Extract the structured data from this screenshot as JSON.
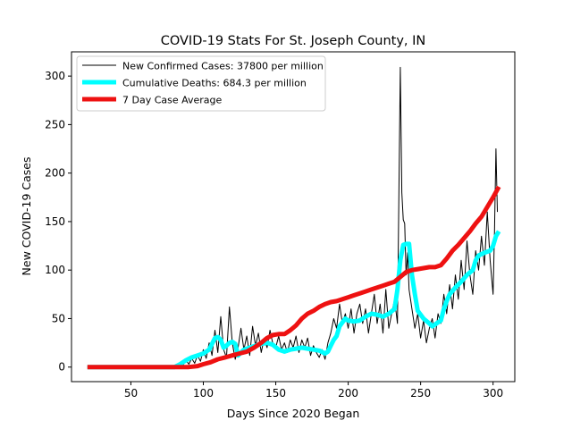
{
  "chart_data": {
    "type": "line",
    "title": "COVID-19 Stats For St. Joseph County, IN",
    "xlabel": "Days Since 2020 Began",
    "ylabel": "New COVID-19 Cases",
    "xlim": [
      9,
      315
    ],
    "ylim": [
      -15,
      325
    ],
    "xticks": [
      50,
      100,
      150,
      200,
      250,
      300
    ],
    "yticks": [
      0,
      50,
      100,
      150,
      200,
      250,
      300
    ],
    "grid": false,
    "legend_position": "top-left",
    "series": [
      {
        "name": "New Confirmed Cases: 37800 per million",
        "color": "#000000",
        "line_width": 1,
        "points": [
          [
            20,
            0
          ],
          [
            40,
            0
          ],
          [
            60,
            0
          ],
          [
            75,
            0
          ],
          [
            80,
            1
          ],
          [
            84,
            5
          ],
          [
            86,
            2
          ],
          [
            88,
            7
          ],
          [
            90,
            3
          ],
          [
            92,
            9
          ],
          [
            94,
            4
          ],
          [
            96,
            12
          ],
          [
            98,
            6
          ],
          [
            100,
            18
          ],
          [
            102,
            9
          ],
          [
            104,
            25
          ],
          [
            106,
            12
          ],
          [
            108,
            38
          ],
          [
            110,
            15
          ],
          [
            112,
            52
          ],
          [
            114,
            18
          ],
          [
            116,
            10
          ],
          [
            118,
            62
          ],
          [
            120,
            25
          ],
          [
            122,
            8
          ],
          [
            124,
            20
          ],
          [
            126,
            40
          ],
          [
            128,
            18
          ],
          [
            130,
            32
          ],
          [
            132,
            12
          ],
          [
            134,
            42
          ],
          [
            136,
            22
          ],
          [
            138,
            35
          ],
          [
            140,
            15
          ],
          [
            142,
            30
          ],
          [
            144,
            20
          ],
          [
            146,
            38
          ],
          [
            148,
            24
          ],
          [
            150,
            20
          ],
          [
            152,
            32
          ],
          [
            154,
            18
          ],
          [
            156,
            25
          ],
          [
            158,
            15
          ],
          [
            160,
            28
          ],
          [
            162,
            20
          ],
          [
            164,
            32
          ],
          [
            166,
            15
          ],
          [
            168,
            28
          ],
          [
            170,
            20
          ],
          [
            172,
            30
          ],
          [
            174,
            12
          ],
          [
            176,
            22
          ],
          [
            178,
            15
          ],
          [
            180,
            10
          ],
          [
            182,
            18
          ],
          [
            184,
            8
          ],
          [
            186,
            25
          ],
          [
            188,
            35
          ],
          [
            190,
            50
          ],
          [
            192,
            40
          ],
          [
            194,
            65
          ],
          [
            196,
            45
          ],
          [
            198,
            55
          ],
          [
            200,
            40
          ],
          [
            202,
            60
          ],
          [
            204,
            35
          ],
          [
            206,
            55
          ],
          [
            208,
            65
          ],
          [
            210,
            45
          ],
          [
            212,
            60
          ],
          [
            214,
            35
          ],
          [
            216,
            55
          ],
          [
            218,
            75
          ],
          [
            220,
            45
          ],
          [
            222,
            65
          ],
          [
            224,
            35
          ],
          [
            226,
            80
          ],
          [
            228,
            40
          ],
          [
            230,
            55
          ],
          [
            232,
            70
          ],
          [
            234,
            45
          ],
          [
            236,
            309
          ],
          [
            237,
            180
          ],
          [
            238,
            152
          ],
          [
            239,
            148
          ],
          [
            240,
            95
          ],
          [
            241,
            118
          ],
          [
            242,
            80
          ],
          [
            244,
            60
          ],
          [
            246,
            40
          ],
          [
            248,
            55
          ],
          [
            250,
            30
          ],
          [
            252,
            48
          ],
          [
            254,
            25
          ],
          [
            256,
            40
          ],
          [
            258,
            50
          ],
          [
            260,
            30
          ],
          [
            262,
            55
          ],
          [
            264,
            45
          ],
          [
            266,
            75
          ],
          [
            268,
            55
          ],
          [
            270,
            85
          ],
          [
            272,
            60
          ],
          [
            274,
            95
          ],
          [
            276,
            70
          ],
          [
            278,
            110
          ],
          [
            280,
            80
          ],
          [
            282,
            130
          ],
          [
            284,
            95
          ],
          [
            286,
            75
          ],
          [
            288,
            120
          ],
          [
            290,
            100
          ],
          [
            292,
            135
          ],
          [
            294,
            105
          ],
          [
            296,
            160
          ],
          [
            298,
            110
          ],
          [
            300,
            75
          ],
          [
            301,
            140
          ],
          [
            302,
            225
          ],
          [
            303,
            160
          ]
        ]
      },
      {
        "name": "Cumulative Deaths: 684.3 per million",
        "color": "#00ffff",
        "line_width": 5,
        "points": [
          [
            20,
            0
          ],
          [
            40,
            0
          ],
          [
            60,
            0
          ],
          [
            80,
            0
          ],
          [
            84,
            3
          ],
          [
            88,
            7
          ],
          [
            92,
            10
          ],
          [
            96,
            12
          ],
          [
            100,
            14
          ],
          [
            104,
            18
          ],
          [
            108,
            30
          ],
          [
            110,
            31
          ],
          [
            112,
            28
          ],
          [
            114,
            20
          ],
          [
            116,
            22
          ],
          [
            118,
            25
          ],
          [
            120,
            26
          ],
          [
            122,
            24
          ],
          [
            124,
            12
          ],
          [
            126,
            15
          ],
          [
            128,
            18
          ],
          [
            132,
            20
          ],
          [
            136,
            22
          ],
          [
            140,
            24
          ],
          [
            144,
            25
          ],
          [
            148,
            23
          ],
          [
            152,
            18
          ],
          [
            156,
            16
          ],
          [
            160,
            18
          ],
          [
            164,
            19
          ],
          [
            168,
            20
          ],
          [
            172,
            19
          ],
          [
            176,
            18
          ],
          [
            180,
            17
          ],
          [
            184,
            14
          ],
          [
            186,
            16
          ],
          [
            188,
            22
          ],
          [
            190,
            28
          ],
          [
            192,
            32
          ],
          [
            194,
            42
          ],
          [
            196,
            46
          ],
          [
            198,
            50
          ],
          [
            200,
            48
          ],
          [
            204,
            47
          ],
          [
            208,
            48
          ],
          [
            212,
            52
          ],
          [
            216,
            55
          ],
          [
            220,
            54
          ],
          [
            224,
            52
          ],
          [
            228,
            55
          ],
          [
            232,
            60
          ],
          [
            234,
            80
          ],
          [
            236,
            110
          ],
          [
            238,
            126
          ],
          [
            240,
            127
          ],
          [
            242,
            127
          ],
          [
            244,
            95
          ],
          [
            246,
            75
          ],
          [
            248,
            58
          ],
          [
            252,
            50
          ],
          [
            256,
            45
          ],
          [
            258,
            42
          ],
          [
            260,
            44
          ],
          [
            264,
            48
          ],
          [
            266,
            60
          ],
          [
            268,
            68
          ],
          [
            270,
            75
          ],
          [
            274,
            82
          ],
          [
            278,
            88
          ],
          [
            282,
            95
          ],
          [
            286,
            100
          ],
          [
            288,
            110
          ],
          [
            290,
            115
          ],
          [
            294,
            118
          ],
          [
            298,
            120
          ],
          [
            300,
            125
          ],
          [
            302,
            135
          ],
          [
            304,
            140
          ]
        ]
      },
      {
        "name": "7 Day Case Average",
        "color": "#ee1111",
        "line_width": 5,
        "points": [
          [
            20,
            0
          ],
          [
            40,
            0
          ],
          [
            60,
            0
          ],
          [
            80,
            0
          ],
          [
            90,
            0
          ],
          [
            96,
            1
          ],
          [
            100,
            3
          ],
          [
            105,
            5
          ],
          [
            110,
            8
          ],
          [
            115,
            10
          ],
          [
            120,
            12
          ],
          [
            125,
            14
          ],
          [
            130,
            16
          ],
          [
            135,
            20
          ],
          [
            140,
            25
          ],
          [
            144,
            30
          ],
          [
            148,
            33
          ],
          [
            152,
            34
          ],
          [
            156,
            34
          ],
          [
            160,
            38
          ],
          [
            164,
            43
          ],
          [
            168,
            50
          ],
          [
            172,
            55
          ],
          [
            176,
            58
          ],
          [
            180,
            62
          ],
          [
            184,
            65
          ],
          [
            188,
            67
          ],
          [
            192,
            68
          ],
          [
            196,
            70
          ],
          [
            200,
            72
          ],
          [
            204,
            74
          ],
          [
            208,
            76
          ],
          [
            212,
            78
          ],
          [
            216,
            80
          ],
          [
            220,
            82
          ],
          [
            224,
            84
          ],
          [
            228,
            86
          ],
          [
            232,
            88
          ],
          [
            236,
            93
          ],
          [
            240,
            98
          ],
          [
            244,
            100
          ],
          [
            248,
            101
          ],
          [
            252,
            102
          ],
          [
            256,
            103
          ],
          [
            260,
            103
          ],
          [
            264,
            105
          ],
          [
            268,
            112
          ],
          [
            272,
            120
          ],
          [
            276,
            126
          ],
          [
            280,
            133
          ],
          [
            284,
            140
          ],
          [
            288,
            148
          ],
          [
            292,
            155
          ],
          [
            296,
            165
          ],
          [
            300,
            175
          ],
          [
            304,
            186
          ]
        ]
      }
    ]
  }
}
